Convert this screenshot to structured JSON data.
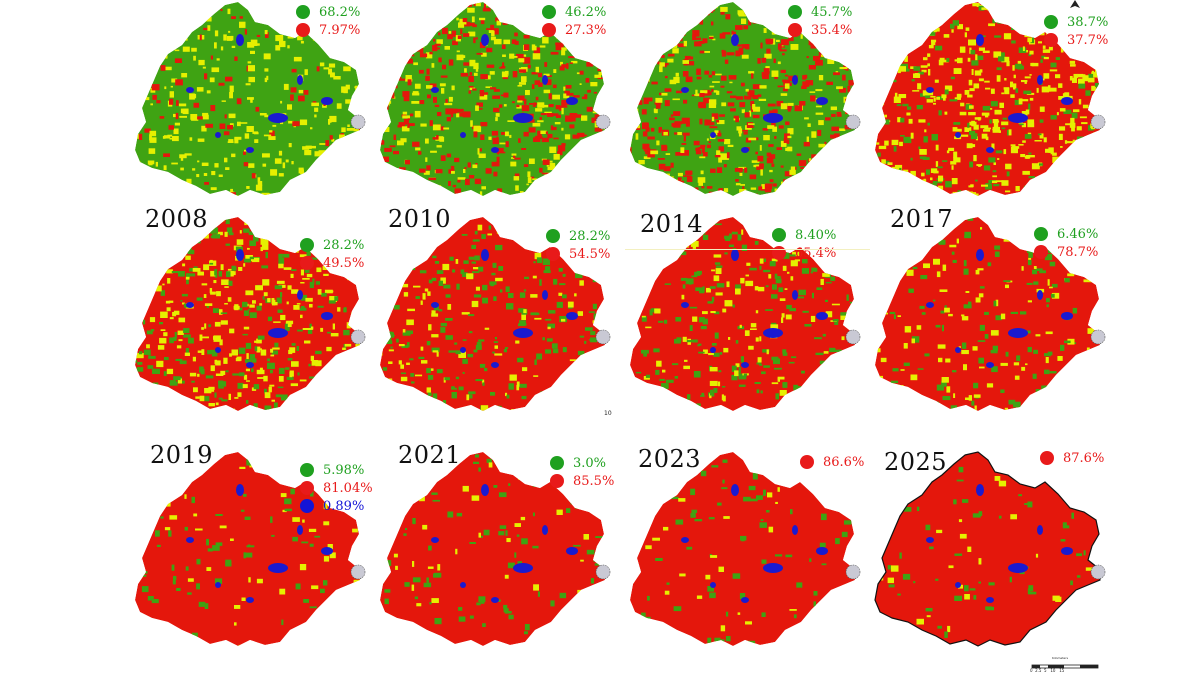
{
  "panels": [
    {
      "year": "",
      "stats": [
        {
          "value": "68.2%",
          "color": "#1fa01f"
        },
        {
          "value": "7.97%",
          "color": "#e81a1a"
        }
      ],
      "palette": {
        "base": "#3fa313",
        "a": "#e6f000",
        "b": "#e4170c",
        "afrac": 0.35,
        "bfrac": 0.1
      }
    },
    {
      "year": "",
      "stats": [
        {
          "value": "46.2%",
          "color": "#1fa01f"
        },
        {
          "value": "27.3%",
          "color": "#e81a1a"
        }
      ],
      "palette": {
        "base": "#3fa313",
        "a": "#e4170c",
        "b": "#e6f000",
        "afrac": 0.45,
        "bfrac": 0.3
      }
    },
    {
      "year": "",
      "stats": [
        {
          "value": "45.7%",
          "color": "#1fa01f"
        },
        {
          "value": "35.4%",
          "color": "#e81a1a"
        }
      ],
      "palette": {
        "base": "#3fa313",
        "a": "#e4170c",
        "b": "#e6f000",
        "afrac": 0.5,
        "bfrac": 0.25
      }
    },
    {
      "year": "",
      "stats": [
        {
          "value": "38.7%",
          "color": "#1fa01f"
        },
        {
          "value": "37.7%",
          "color": "#e81a1a"
        }
      ],
      "palette": {
        "base": "#e4170c",
        "a": "#e6f000",
        "b": "#3fa313",
        "afrac": 0.45,
        "bfrac": 0.2
      }
    },
    {
      "year": "2008",
      "stats": [
        {
          "value": "28.2%",
          "color": "#1fa01f"
        },
        {
          "value": "49.5%",
          "color": "#e81a1a"
        }
      ],
      "palette": {
        "base": "#e4170c",
        "a": "#e6f000",
        "b": "#3fa313",
        "afrac": 0.3,
        "bfrac": 0.3
      }
    },
    {
      "year": "2010",
      "stats": [
        {
          "value": "28.2%",
          "color": "#1fa01f"
        },
        {
          "value": "54.5%",
          "color": "#e81a1a"
        }
      ],
      "palette": {
        "base": "#e4170c",
        "a": "#3fa313",
        "b": "#e6f000",
        "afrac": 0.3,
        "bfrac": 0.12
      }
    },
    {
      "year": "2014",
      "stats": [
        {
          "value": "8.40%",
          "color": "#1fa01f"
        },
        {
          "value": "65.4%",
          "color": "#e81a1a"
        }
      ],
      "palette": {
        "base": "#e4170c",
        "a": "#3fa313",
        "b": "#e6f000",
        "afrac": 0.25,
        "bfrac": 0.15
      }
    },
    {
      "year": "2017",
      "stats": [
        {
          "value": "6.46%",
          "color": "#1fa01f"
        },
        {
          "value": "78.7%",
          "color": "#e81a1a"
        }
      ],
      "palette": {
        "base": "#e4170c",
        "a": "#3fa313",
        "b": "#e6f000",
        "afrac": 0.15,
        "bfrac": 0.12
      }
    },
    {
      "year": "2019",
      "stats": [
        {
          "value": "5.98%",
          "color": "#1fa01f"
        },
        {
          "value": "81.04%",
          "color": "#e81a1a"
        },
        {
          "value": "0.89%",
          "color": "#1414d6"
        }
      ],
      "palette": {
        "base": "#e4170c",
        "a": "#3fa313",
        "b": "#e6f000",
        "afrac": 0.12,
        "bfrac": 0.06
      }
    },
    {
      "year": "2021",
      "stats": [
        {
          "value": "3.0%",
          "color": "#1fa01f"
        },
        {
          "value": "85.5%",
          "color": "#e81a1a"
        }
      ],
      "palette": {
        "base": "#e4170c",
        "a": "#3fa313",
        "b": "#e6f000",
        "afrac": 0.12,
        "bfrac": 0.04
      }
    },
    {
      "year": "2023",
      "stats": [
        {
          "value": "86.6%",
          "color": "#e81a1a"
        }
      ],
      "palette": {
        "base": "#e4170c",
        "a": "#3fa313",
        "b": "#e6f000",
        "afrac": 0.1,
        "bfrac": 0.03
      }
    },
    {
      "year": "2025",
      "stats": [
        {
          "value": "87.6%",
          "color": "#e81a1a"
        }
      ],
      "palette": {
        "base": "#e4170c",
        "a": "#3fa313",
        "b": "#e6f000",
        "afrac": 0.09,
        "bfrac": 0.02
      }
    }
  ],
  "water_color": "#1a1ad0",
  "scale_text": "0  2.5  5   10   15",
  "scale_title": "Kilometers",
  "stray_text": "10"
}
